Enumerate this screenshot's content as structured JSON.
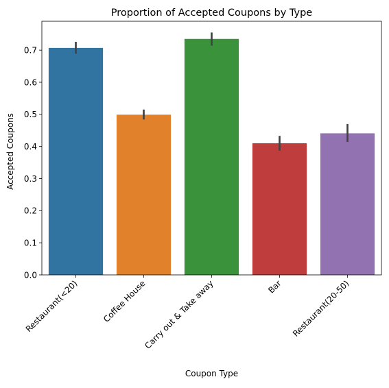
{
  "chart_data": {
    "type": "bar",
    "title": "Proportion of Accepted Coupons by Type",
    "xlabel": "Coupon Type",
    "ylabel": "Accepted Coupons",
    "categories": [
      "Restaurant(<20)",
      "Coffee House",
      "Carry out & Take away",
      "Bar",
      "Restaurant(20-50)"
    ],
    "values": [
      0.707,
      0.499,
      0.735,
      0.41,
      0.441
    ],
    "error_low": [
      0.689,
      0.484,
      0.714,
      0.387,
      0.414
    ],
    "error_high": [
      0.726,
      0.515,
      0.755,
      0.433,
      0.47
    ],
    "colors": [
      "#3274a1",
      "#e1812c",
      "#3a923a",
      "#c03d3e",
      "#9372b2"
    ],
    "ylim": [
      0,
      0.79
    ],
    "yticks": [
      "0.0",
      "0.1",
      "0.2",
      "0.3",
      "0.4",
      "0.5",
      "0.6",
      "0.7"
    ],
    "grid": false,
    "legend": "none"
  }
}
